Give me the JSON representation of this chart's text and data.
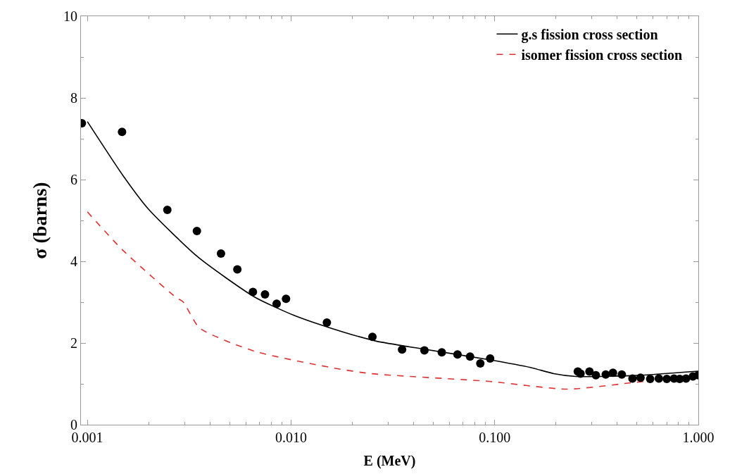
{
  "chart_data": {
    "type": "line",
    "xlabel": "E (MeV)",
    "ylabel": "σ (barns)",
    "log": "x",
    "xlim": [
      0.00093,
      1.0
    ],
    "xticks": [
      {
        "value": 0.001,
        "label": "0.001"
      },
      {
        "value": 0.01,
        "label": "0.010"
      },
      {
        "value": 0.1,
        "label": "0.100"
      },
      {
        "value": 1.0,
        "label": "1.000"
      }
    ],
    "ylim": [
      0,
      10
    ],
    "yticks": [
      0,
      2,
      4,
      6,
      8,
      10
    ],
    "legend": "top right",
    "series": [
      {
        "name": "g.s fission cross section",
        "color": "#000000",
        "line_style": "solid",
        "marker": "none",
        "x": [
          0.001,
          0.0015,
          0.002,
          0.0035,
          0.0066,
          0.0103,
          0.016,
          0.026,
          0.045,
          0.094,
          0.15,
          0.195,
          0.25,
          0.475,
          1.0
        ],
        "values": [
          7.42,
          6.09,
          5.27,
          4.1,
          3.13,
          2.68,
          2.35,
          2.05,
          1.85,
          1.59,
          1.4,
          1.25,
          1.18,
          1.2,
          1.31
        ]
      },
      {
        "name": "isomer fission cross section",
        "color": "#e03030",
        "line_style": "dashed",
        "marker": "none",
        "x": [
          0.001,
          0.0015,
          0.0027,
          0.00296,
          0.00355,
          0.0066,
          0.0161,
          0.0247,
          0.094,
          0.228,
          0.475,
          0.55
        ],
        "values": [
          5.21,
          4.26,
          3.13,
          3.0,
          2.37,
          1.8,
          1.39,
          1.25,
          1.06,
          0.87,
          1.03,
          1.06
        ]
      },
      {
        "type": "scatter",
        "color": "#000000",
        "marker": "circle",
        "x": [
          0.00094,
          0.00148,
          0.00247,
          0.00345,
          0.00453,
          0.00545,
          0.0065,
          0.00745,
          0.0085,
          0.00945,
          0.015,
          0.0251,
          0.0351,
          0.0452,
          0.055,
          0.0657,
          0.0757,
          0.085,
          0.095,
          0.256,
          0.264,
          0.292,
          0.314,
          0.351,
          0.381,
          0.421,
          0.475,
          0.52,
          0.58,
          0.64,
          0.7,
          0.76,
          0.81,
          0.87,
          0.94,
          1.0
        ],
        "values": [
          7.38,
          7.17,
          5.26,
          4.74,
          4.19,
          3.8,
          3.25,
          3.19,
          2.96,
          3.08,
          2.5,
          2.15,
          1.84,
          1.82,
          1.77,
          1.72,
          1.67,
          1.5,
          1.62,
          1.3,
          1.25,
          1.3,
          1.21,
          1.23,
          1.27,
          1.23,
          1.13,
          1.15,
          1.12,
          1.13,
          1.12,
          1.13,
          1.12,
          1.13,
          1.18,
          1.21
        ]
      }
    ]
  }
}
